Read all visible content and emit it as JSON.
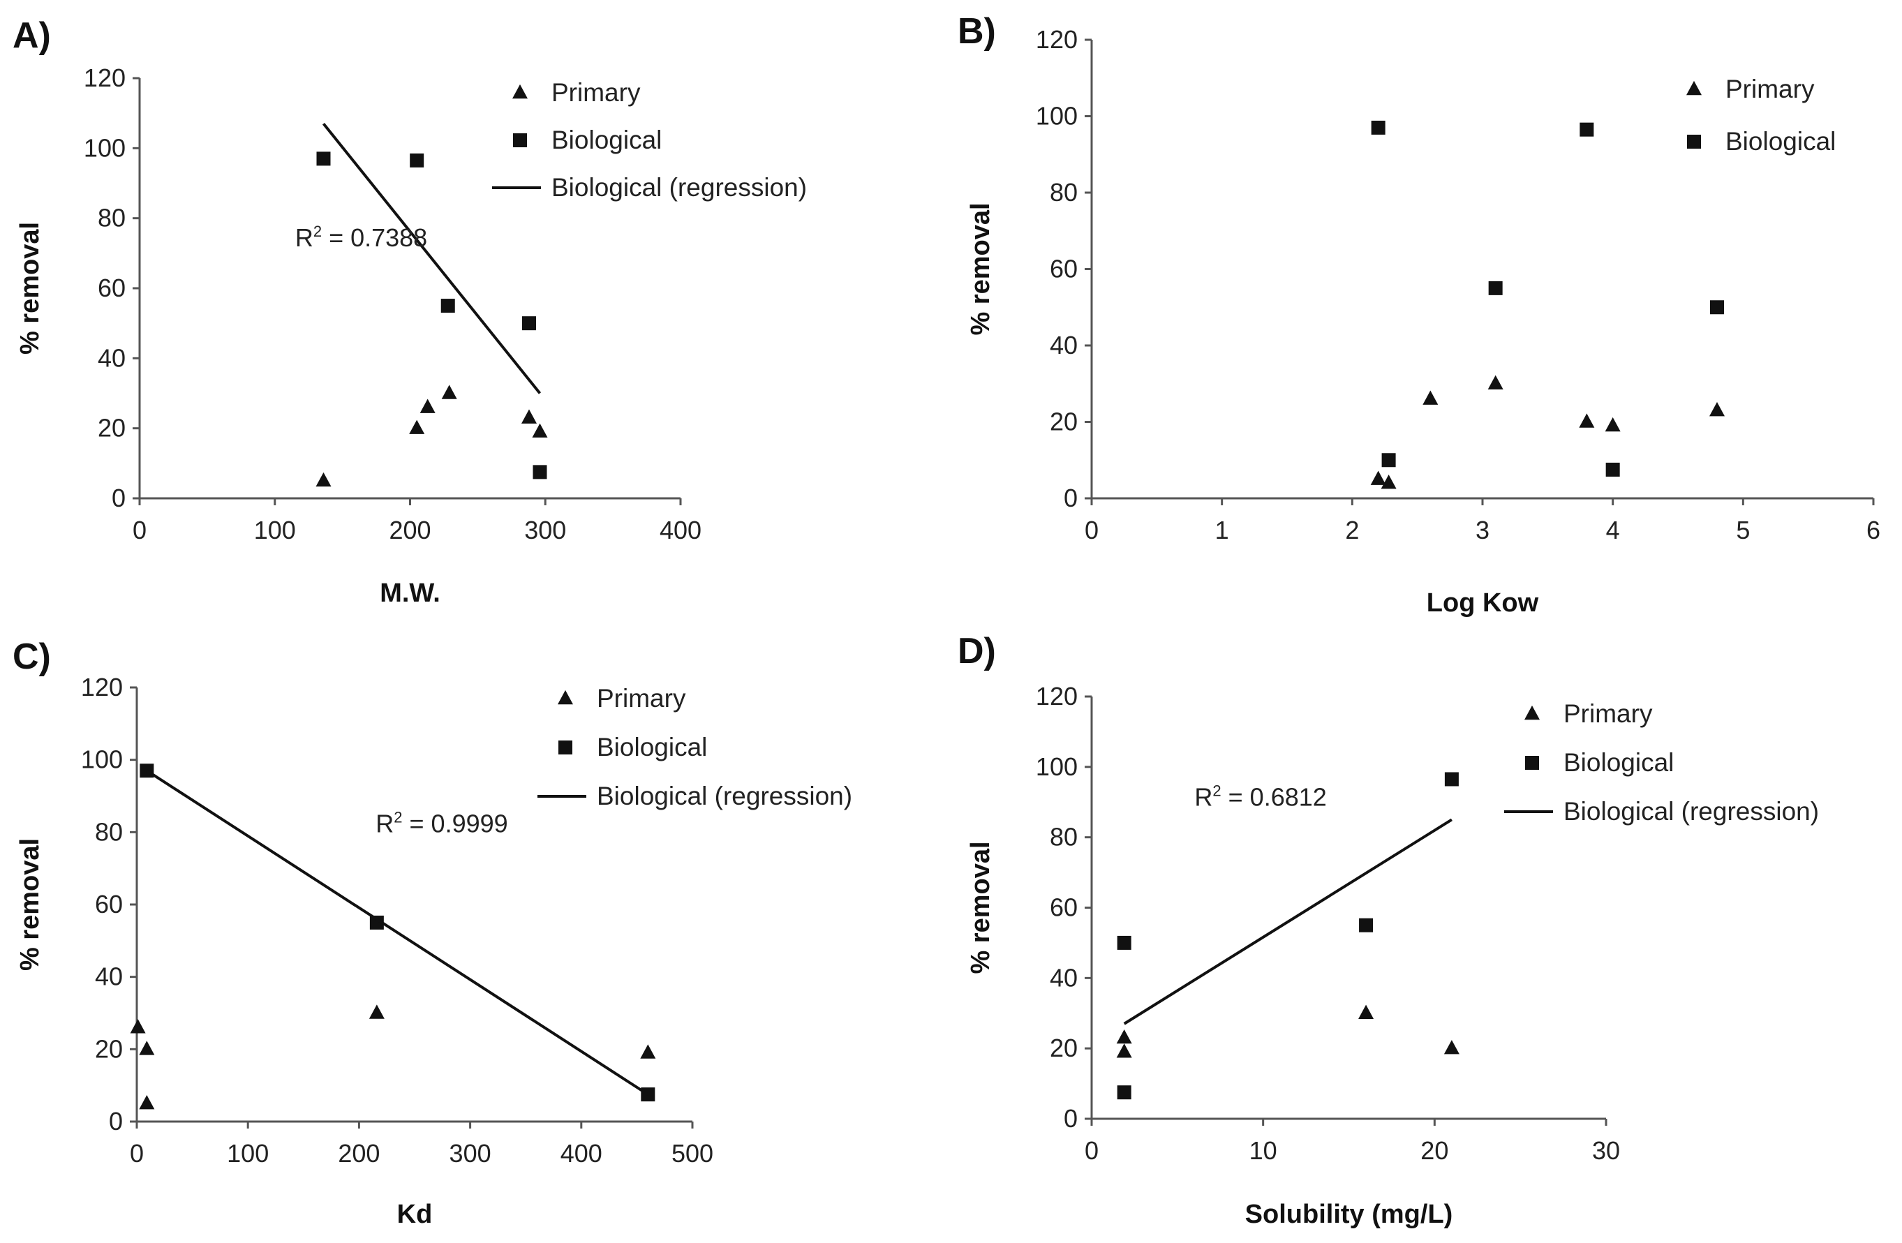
{
  "chart_data": [
    {
      "id": "A",
      "panel_label": "A)",
      "type": "scatter",
      "xlabel": "M.W.",
      "ylabel": "% removal",
      "xlim": [
        0,
        400
      ],
      "ylim": [
        0,
        120
      ],
      "xticks": [
        0,
        100,
        200,
        300,
        400
      ],
      "yticks": [
        0,
        20,
        40,
        60,
        80,
        100,
        120
      ],
      "grid": false,
      "legend_position": "top-right",
      "legend": [
        "Primary",
        "Biological",
        "Biological (regression)"
      ],
      "series": [
        {
          "name": "Primary",
          "marker": "triangle",
          "points": [
            [
              136,
              5
            ],
            [
              205,
              20
            ],
            [
              213,
              26
            ],
            [
              229,
              30
            ],
            [
              288,
              23
            ],
            [
              296,
              19
            ]
          ]
        },
        {
          "name": "Biological",
          "marker": "square",
          "points": [
            [
              136,
              97
            ],
            [
              205,
              96.5
            ],
            [
              228,
              55
            ],
            [
              288,
              50
            ],
            [
              296,
              7.5
            ]
          ]
        },
        {
          "name": "Biological (regression)",
          "type": "line",
          "points": [
            [
              136,
              107
            ],
            [
              296,
              30
            ]
          ]
        }
      ],
      "annotations": [
        {
          "prefix": "R",
          "sup": "2",
          "suffix": " = 0.7388",
          "x": 115,
          "y": 72
        }
      ]
    },
    {
      "id": "B",
      "panel_label": "B)",
      "type": "scatter",
      "xlabel": "Log Kow",
      "ylabel": "% removal",
      "xlim": [
        0,
        6
      ],
      "ylim": [
        0,
        120
      ],
      "xticks": [
        0,
        1,
        2,
        3,
        4,
        5,
        6
      ],
      "yticks": [
        0,
        20,
        40,
        60,
        80,
        100,
        120
      ],
      "grid": false,
      "legend_position": "top-right",
      "legend": [
        "Primary",
        "Biological"
      ],
      "series": [
        {
          "name": "Primary",
          "marker": "triangle",
          "points": [
            [
              2.2,
              5
            ],
            [
              2.28,
              4
            ],
            [
              2.6,
              26
            ],
            [
              3.1,
              30
            ],
            [
              3.8,
              20
            ],
            [
              4.0,
              19
            ],
            [
              4.8,
              23
            ]
          ]
        },
        {
          "name": "Biological",
          "marker": "square",
          "points": [
            [
              2.2,
              97
            ],
            [
              2.28,
              10
            ],
            [
              3.1,
              55
            ],
            [
              3.8,
              96.5
            ],
            [
              4.8,
              50
            ],
            [
              4.0,
              7.5
            ]
          ]
        }
      ],
      "annotations": []
    },
    {
      "id": "C",
      "panel_label": "C)",
      "type": "scatter",
      "xlabel": "Kd",
      "ylabel": "% removal",
      "xlim": [
        0,
        500
      ],
      "ylim": [
        0,
        120
      ],
      "xticks": [
        0,
        100,
        200,
        300,
        400,
        500
      ],
      "yticks": [
        0,
        20,
        40,
        60,
        80,
        100,
        120
      ],
      "grid": false,
      "legend_position": "top-right",
      "legend": [
        "Primary",
        "Biological",
        "Biological (regression)"
      ],
      "series": [
        {
          "name": "Primary",
          "marker": "triangle",
          "points": [
            [
              1,
              26
            ],
            [
              9,
              20
            ],
            [
              9,
              5
            ],
            [
              216,
              30
            ],
            [
              460,
              19
            ]
          ]
        },
        {
          "name": "Biological",
          "marker": "square",
          "points": [
            [
              9,
              97
            ],
            [
              216,
              55
            ],
            [
              460,
              7.5
            ]
          ]
        },
        {
          "name": "Biological (regression)",
          "type": "line",
          "points": [
            [
              9,
              97
            ],
            [
              460,
              7.5
            ]
          ]
        }
      ],
      "annotations": [
        {
          "prefix": "R",
          "sup": "2",
          "suffix": " = 0.9999",
          "x": 215,
          "y": 80
        }
      ]
    },
    {
      "id": "D",
      "panel_label": "D)",
      "type": "scatter",
      "xlabel": "Solubility (mg/L)",
      "ylabel": "% removal",
      "xlim": [
        0,
        30
      ],
      "ylim": [
        0,
        120
      ],
      "xticks": [
        0,
        10,
        20,
        30
      ],
      "yticks": [
        0,
        20,
        40,
        60,
        80,
        100,
        120
      ],
      "grid": false,
      "legend_position": "top-right",
      "legend": [
        "Primary",
        "Biological",
        "Biological (regression)"
      ],
      "series": [
        {
          "name": "Primary",
          "marker": "triangle",
          "points": [
            [
              1.9,
              23
            ],
            [
              1.9,
              19
            ],
            [
              16,
              30
            ],
            [
              21,
              20
            ]
          ]
        },
        {
          "name": "Biological",
          "marker": "square",
          "points": [
            [
              1.9,
              50
            ],
            [
              1.9,
              7.5
            ],
            [
              16,
              55
            ],
            [
              21,
              96.5
            ]
          ]
        },
        {
          "name": "Biological (regression)",
          "type": "line",
          "points": [
            [
              1.9,
              27
            ],
            [
              21,
              85
            ]
          ]
        }
      ],
      "annotations": [
        {
          "prefix": "R",
          "sup": "2",
          "suffix": " = 0.6812",
          "x": 6,
          "y": 89
        }
      ]
    }
  ]
}
